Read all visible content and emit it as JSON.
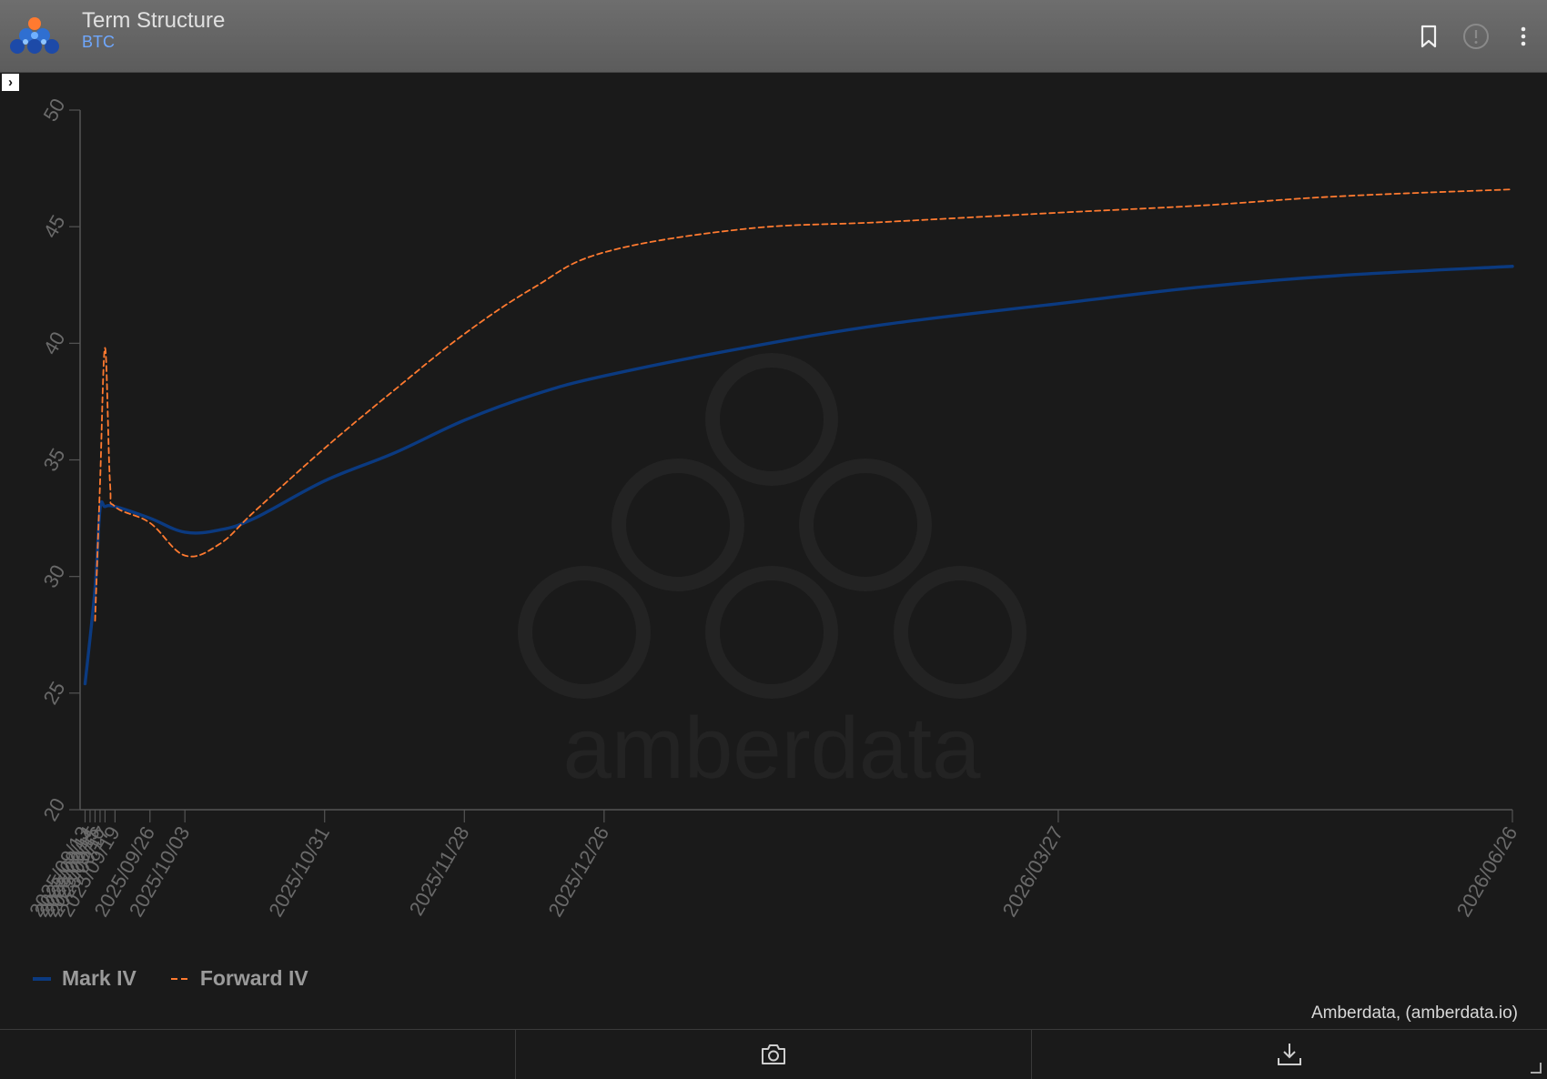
{
  "header": {
    "title": "Term Structure",
    "subtitle": "BTC",
    "icons": [
      "bookmark-icon",
      "info-icon",
      "more-vertical-icon"
    ]
  },
  "footer": {
    "icons": [
      "camera-icon",
      "download-icon"
    ]
  },
  "credit": "Amberdata, (amberdata.io)",
  "watermark": "amberdata",
  "colors": {
    "mark_iv": "#0b3a80",
    "forward_iv": "#ff7a30",
    "axis": "#555555",
    "tick_text": "#6a6a6a"
  },
  "legend": [
    {
      "label": "Mark IV",
      "style": "solid"
    },
    {
      "label": "Forward IV",
      "style": "dashed"
    }
  ],
  "chart_data": {
    "type": "line",
    "title": "",
    "xlabel": "",
    "ylabel": "",
    "ylim": [
      20,
      50
    ],
    "yticks": [
      20,
      25,
      30,
      35,
      40,
      45,
      50
    ],
    "xlim": [
      "2025-09-12",
      "2026-06-26"
    ],
    "x_ticks": [
      "2025/09/13",
      "2025/09/14",
      "2025/09/15",
      "2025/09/16",
      "2025/09/17",
      "2025/09/19",
      "2025/09/26",
      "2025/10/03",
      "2025/10/31",
      "2025/11/28",
      "2025/12/26",
      "2026/03/27",
      "2026/06/26"
    ],
    "grid": false,
    "legend_position": "bottom-left",
    "series": [
      {
        "name": "Mark IV",
        "style": "solid",
        "x": [
          "2025-09-13",
          "2025-09-15",
          "2025-09-16",
          "2025-09-17",
          "2025-09-19",
          "2025-09-26",
          "2025-10-03",
          "2025-10-10",
          "2025-10-17",
          "2025-10-31",
          "2025-11-14",
          "2025-11-28",
          "2025-12-12",
          "2025-12-26",
          "2026-01-23",
          "2026-02-20",
          "2026-03-27",
          "2026-04-24",
          "2026-05-22",
          "2026-06-26"
        ],
        "values": [
          25.4,
          29.5,
          32.9,
          33.0,
          33.0,
          32.5,
          31.9,
          32.0,
          32.5,
          34.1,
          35.3,
          36.7,
          37.8,
          38.6,
          39.8,
          40.8,
          41.7,
          42.4,
          42.9,
          43.3
        ]
      },
      {
        "name": "Forward IV",
        "style": "dashed",
        "x": [
          "2025-09-15",
          "2025-09-16",
          "2025-09-17",
          "2025-09-18",
          "2025-09-19",
          "2025-09-26",
          "2025-10-03",
          "2025-10-10",
          "2025-10-17",
          "2025-10-31",
          "2025-11-14",
          "2025-11-28",
          "2025-12-12",
          "2025-12-26",
          "2026-01-23",
          "2026-02-20",
          "2026-03-27",
          "2026-04-24",
          "2026-05-22",
          "2026-06-26"
        ],
        "values": [
          28.1,
          34.0,
          39.8,
          34.0,
          33.0,
          32.3,
          30.9,
          31.4,
          32.8,
          35.5,
          38.0,
          40.4,
          42.4,
          43.9,
          44.9,
          45.2,
          45.6,
          45.9,
          46.3,
          46.6
        ]
      }
    ]
  }
}
